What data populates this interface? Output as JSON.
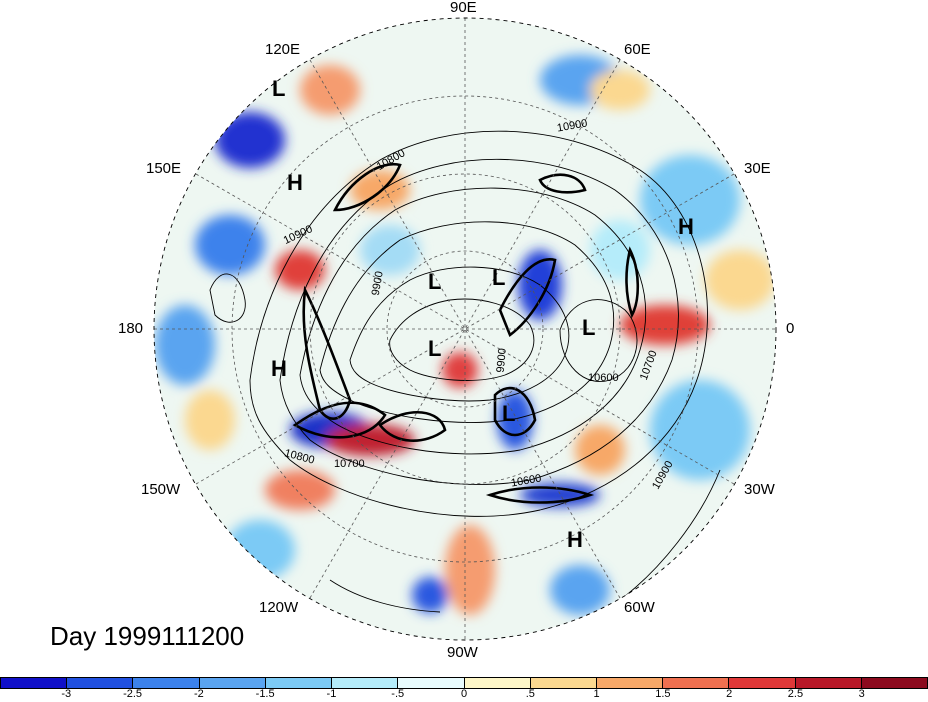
{
  "title_label": "Day 1999111200",
  "longitude_labels": {
    "lon_90e": "90E",
    "lon_60e": "60E",
    "lon_120e": "120E",
    "lon_30e": "30E",
    "lon_150e": "150E",
    "lon_0": "0",
    "lon_180": "180",
    "lon_150w": "150W",
    "lon_30w": "30W",
    "lon_120w": "120W",
    "lon_60w": "60W",
    "lon_90w": "90W"
  },
  "pressure_centers": [
    "L",
    "H",
    "H",
    "L",
    "L",
    "L",
    "H",
    "L",
    "L",
    "H",
    "H"
  ],
  "contour_labels": [
    "10900",
    "10800",
    "10900",
    "10900",
    "10600",
    "10700",
    "10600",
    "10700",
    "10800",
    "10600",
    "10900",
    "9900",
    "9900",
    "10900"
  ],
  "colorbar": {
    "ticks": [
      "-3",
      "-2.5",
      "-2",
      "-1.5",
      "-1",
      "-.5",
      "0",
      ".5",
      "1",
      "1.5",
      "2",
      "2.5",
      "3"
    ],
    "colors": [
      "#1010c8",
      "#2050e0",
      "#3c82ec",
      "#5aa4f0",
      "#7ccaf5",
      "#b5ecfa",
      "#e8fbfd",
      "#fdf6c8",
      "#fbd890",
      "#f7a868",
      "#ef7050",
      "#e03838",
      "#b81828",
      "#8c0a1e"
    ]
  },
  "fill_colors": {
    "ocean_background": "#e9f4f3",
    "negative_strong": "#2c48d8",
    "negative_medium": "#5aa4f0",
    "negative_light": "#a4dcf5",
    "positive_light": "#fbe0a8",
    "positive_medium": "#f59c70",
    "positive_strong": "#e0403a",
    "positive_extreme": "#b81828"
  }
}
